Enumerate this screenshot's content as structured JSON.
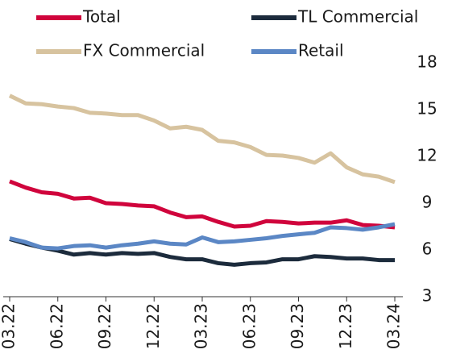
{
  "chart_data": {
    "type": "line",
    "categories": [
      "03.22",
      null,
      null,
      "06.22",
      null,
      null,
      "09.22",
      null,
      null,
      "12.22",
      null,
      null,
      "03.23",
      null,
      null,
      "06.23",
      null,
      null,
      "09.23",
      null,
      null,
      "12.23",
      null,
      null,
      "03.24"
    ],
    "series": [
      {
        "name": "Total",
        "color": "#d0043c",
        "values": [
          10.4,
          10.0,
          9.7,
          9.6,
          9.3,
          9.35,
          9.0,
          8.95,
          8.85,
          8.8,
          8.4,
          8.1,
          8.15,
          7.8,
          7.5,
          7.55,
          7.85,
          7.8,
          7.7,
          7.75,
          7.75,
          7.9,
          7.6,
          7.55,
          7.45
        ]
      },
      {
        "name": "TL Commercial",
        "color": "#1c2b3c",
        "values": [
          6.7,
          6.4,
          6.15,
          5.95,
          5.7,
          5.8,
          5.7,
          5.8,
          5.75,
          5.8,
          5.55,
          5.4,
          5.4,
          5.15,
          5.05,
          5.15,
          5.2,
          5.4,
          5.4,
          5.6,
          5.55,
          5.45,
          5.45,
          5.35,
          5.35
        ]
      },
      {
        "name": "FX Commercial",
        "color": "#d7c39f",
        "values": [
          15.9,
          15.4,
          15.35,
          15.2,
          15.1,
          14.8,
          14.75,
          14.65,
          14.65,
          14.3,
          13.8,
          13.9,
          13.7,
          13.0,
          12.9,
          12.6,
          12.1,
          12.05,
          11.9,
          11.6,
          12.2,
          11.3,
          10.85,
          10.7,
          10.35
        ]
      },
      {
        "name": "Retail",
        "color": "#5b87c5",
        "values": [
          6.75,
          6.5,
          6.15,
          6.1,
          6.25,
          6.3,
          6.15,
          6.3,
          6.4,
          6.55,
          6.4,
          6.35,
          6.8,
          6.5,
          6.55,
          6.65,
          6.75,
          6.9,
          7.0,
          7.1,
          7.45,
          7.4,
          7.3,
          7.45,
          7.65
        ]
      }
    ],
    "ylim": [
      3,
      18
    ],
    "yticks": [
      3,
      6,
      9,
      12,
      15,
      18
    ]
  }
}
